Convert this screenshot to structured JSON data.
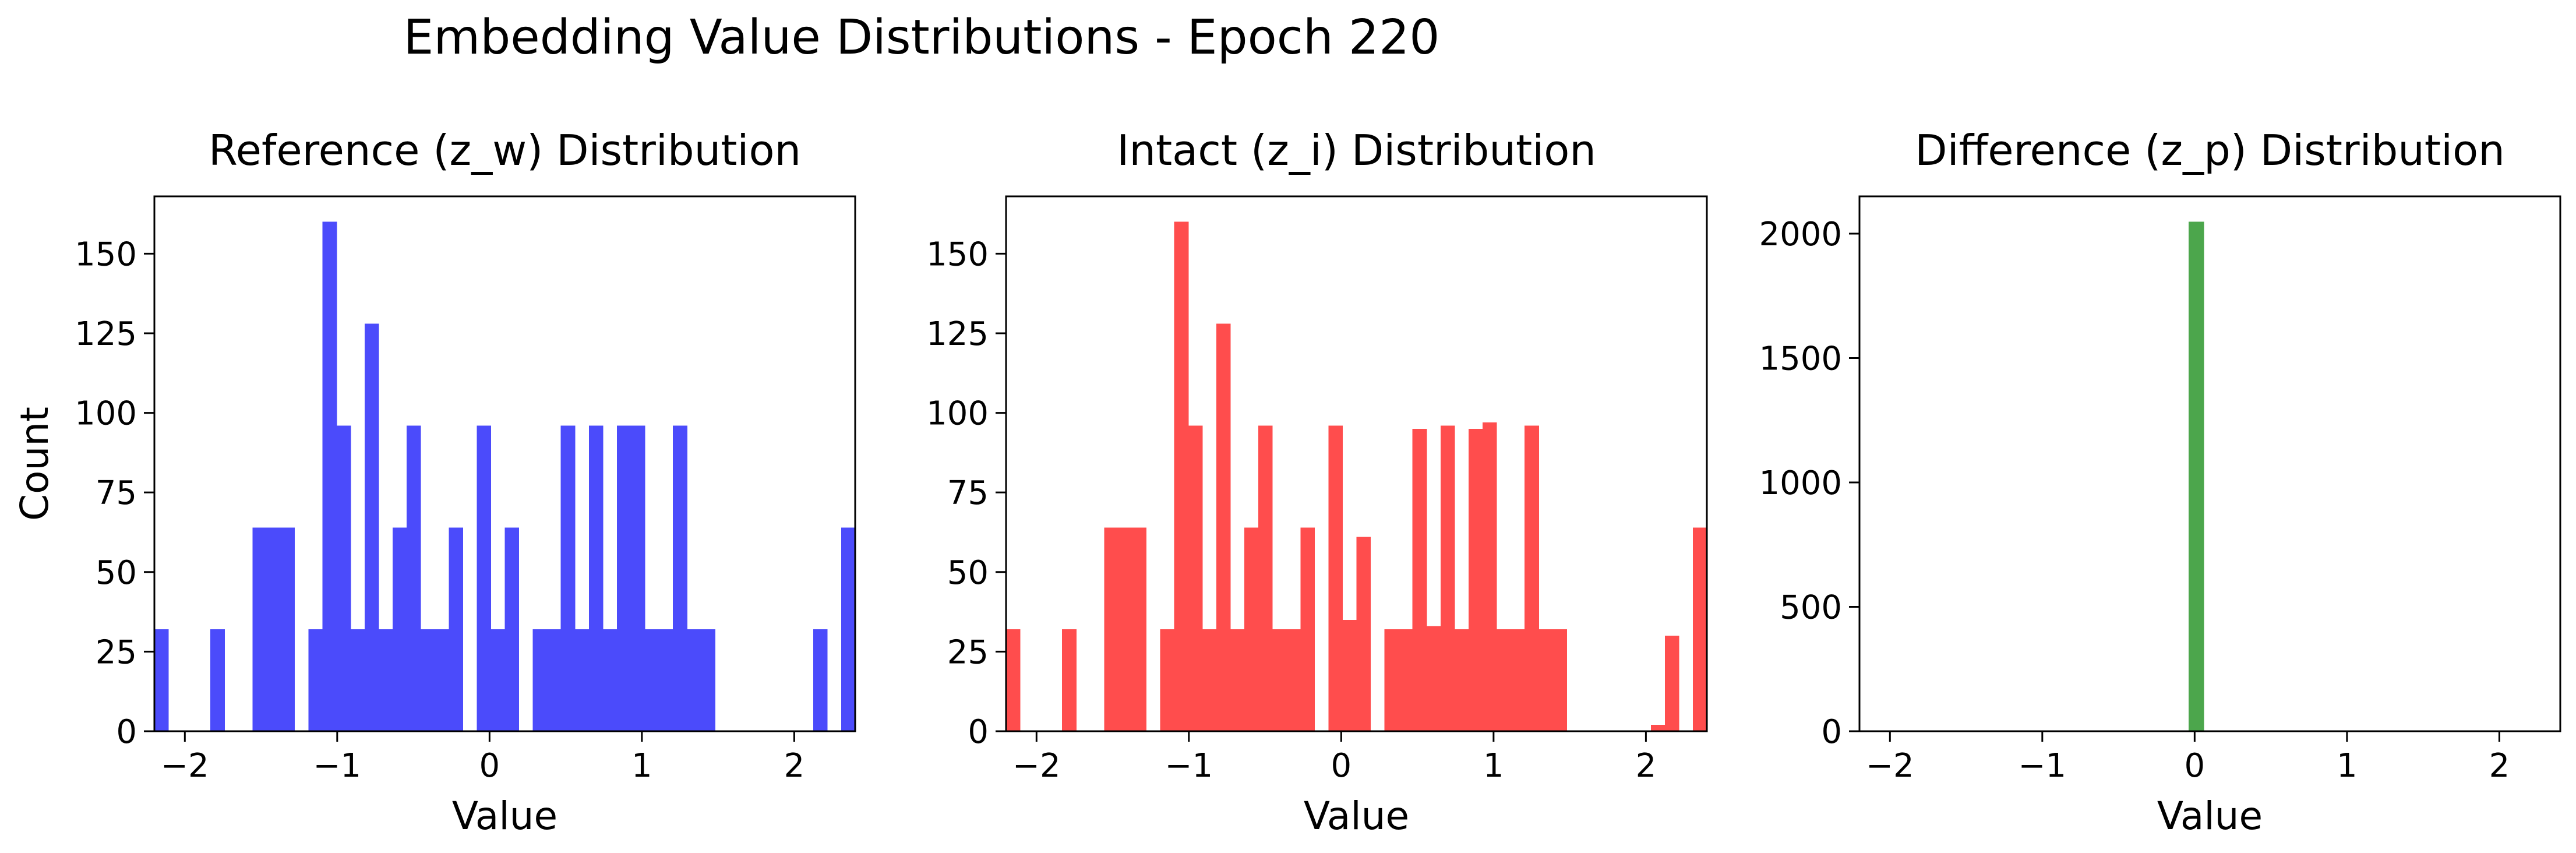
{
  "figure": {
    "title": "Embedding Value Distributions - Epoch 220"
  },
  "chart_data": [
    {
      "type": "bar",
      "title": "Reference (z_w) Distribution",
      "xlabel": "Value",
      "ylabel": "Count",
      "xlim": [
        -2.2,
        2.4
      ],
      "ylim": [
        0,
        168
      ],
      "xticks": [
        "−2",
        "−1",
        "0",
        "1",
        "2"
      ],
      "yticks": [
        "0",
        "25",
        "50",
        "75",
        "100",
        "125",
        "150"
      ],
      "color": "#4b4bfb",
      "bin_edges": [
        -2.2,
        -2.108,
        -2.016,
        -1.924,
        -1.832,
        -1.74,
        -1.648,
        -1.556,
        -1.464,
        -1.372,
        -1.28,
        -1.188,
        -1.096,
        -1.004,
        -0.912,
        -0.82,
        -0.728,
        -0.636,
        -0.544,
        -0.452,
        -0.36,
        -0.268,
        -0.176,
        -0.084,
        0.008,
        0.1,
        0.192,
        0.284,
        0.376,
        0.468,
        0.56,
        0.652,
        0.744,
        0.836,
        0.928,
        1.02,
        1.112,
        1.204,
        1.296,
        1.388,
        1.48,
        1.572,
        1.664,
        1.756,
        1.848,
        1.94,
        2.032,
        2.124,
        2.216,
        2.308,
        2.4
      ],
      "values": [
        32,
        0,
        0,
        0,
        32,
        0,
        0,
        64,
        64,
        64,
        0,
        32,
        160,
        96,
        32,
        128,
        32,
        64,
        96,
        32,
        32,
        64,
        0,
        96,
        32,
        64,
        0,
        32,
        32,
        96,
        32,
        96,
        32,
        96,
        96,
        32,
        32,
        96,
        32,
        32,
        0,
        0,
        0,
        0,
        0,
        0,
        0,
        32,
        0,
        64
      ]
    },
    {
      "type": "bar",
      "title": "Intact (z_i) Distribution",
      "xlabel": "Value",
      "ylabel": "",
      "xlim": [
        -2.2,
        2.4
      ],
      "ylim": [
        0,
        168
      ],
      "xticks": [
        "−2",
        "−1",
        "0",
        "1",
        "2"
      ],
      "yticks": [
        "0",
        "25",
        "50",
        "75",
        "100",
        "125",
        "150"
      ],
      "color": "#ff4d4d",
      "bin_edges": [
        -2.2,
        -2.108,
        -2.016,
        -1.924,
        -1.832,
        -1.74,
        -1.648,
        -1.556,
        -1.464,
        -1.372,
        -1.28,
        -1.188,
        -1.096,
        -1.004,
        -0.912,
        -0.82,
        -0.728,
        -0.636,
        -0.544,
        -0.452,
        -0.36,
        -0.268,
        -0.176,
        -0.084,
        0.008,
        0.1,
        0.192,
        0.284,
        0.376,
        0.468,
        0.56,
        0.652,
        0.744,
        0.836,
        0.928,
        1.02,
        1.112,
        1.204,
        1.296,
        1.388,
        1.48,
        1.572,
        1.664,
        1.756,
        1.848,
        1.94,
        2.032,
        2.124,
        2.216,
        2.308,
        2.4
      ],
      "values": [
        32,
        0,
        0,
        0,
        32,
        0,
        0,
        64,
        64,
        64,
        0,
        32,
        160,
        96,
        32,
        128,
        32,
        64,
        96,
        32,
        32,
        64,
        0,
        96,
        35,
        61,
        0,
        32,
        32,
        95,
        33,
        96,
        32,
        95,
        97,
        32,
        32,
        96,
        32,
        32,
        0,
        0,
        0,
        0,
        0,
        0,
        2,
        30,
        0,
        64
      ]
    },
    {
      "type": "bar",
      "title": "Difference (z_p) Distribution",
      "xlabel": "Value",
      "ylabel": "",
      "xlim": [
        -2.2,
        2.4
      ],
      "ylim": [
        0,
        2150
      ],
      "xticks": [
        "−2",
        "−1",
        "0",
        "1",
        "2"
      ],
      "yticks": [
        "0",
        "500",
        "1000",
        "1500",
        "2000"
      ],
      "color": "#4ca64c",
      "bin_edges": [
        -0.04,
        0.06
      ],
      "values": [
        2048
      ]
    }
  ]
}
